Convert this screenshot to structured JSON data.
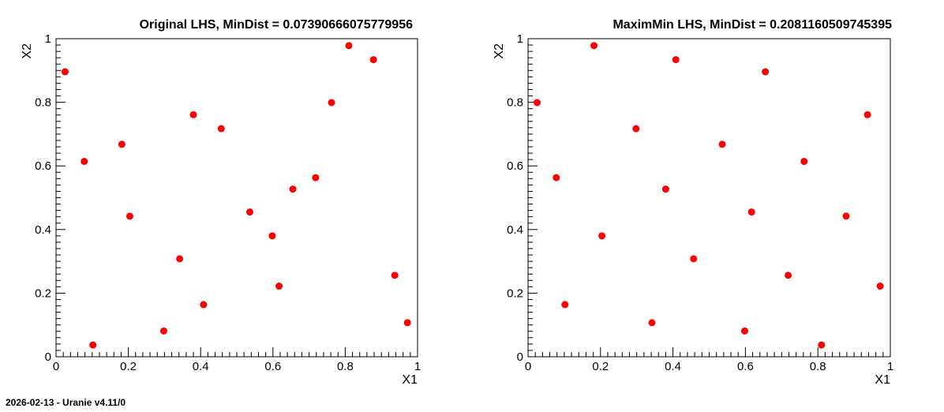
{
  "footer": "2026-02-13 - Uranie v4.11/0",
  "point_color": "#ff0000",
  "chart_data": [
    {
      "type": "scatter",
      "title": "Original LHS, MinDist = 0.07390666075779956",
      "xlabel": "X1",
      "ylabel": "X2",
      "xlim": [
        0,
        1
      ],
      "ylim": [
        0,
        1
      ],
      "xticks": [
        "0",
        "0.2",
        "0.4",
        "0.6",
        "0.8",
        "1"
      ],
      "yticks": [
        "0",
        "0.2",
        "0.4",
        "0.6",
        "0.8",
        "1"
      ],
      "points": [
        {
          "x": 0.025,
          "y": 0.896
        },
        {
          "x": 0.078,
          "y": 0.614
        },
        {
          "x": 0.102,
          "y": 0.037
        },
        {
          "x": 0.182,
          "y": 0.668
        },
        {
          "x": 0.204,
          "y": 0.442
        },
        {
          "x": 0.298,
          "y": 0.081
        },
        {
          "x": 0.342,
          "y": 0.308
        },
        {
          "x": 0.38,
          "y": 0.761
        },
        {
          "x": 0.408,
          "y": 0.164
        },
        {
          "x": 0.457,
          "y": 0.717
        },
        {
          "x": 0.536,
          "y": 0.455
        },
        {
          "x": 0.598,
          "y": 0.38
        },
        {
          "x": 0.617,
          "y": 0.222
        },
        {
          "x": 0.655,
          "y": 0.527
        },
        {
          "x": 0.718,
          "y": 0.563
        },
        {
          "x": 0.762,
          "y": 0.799
        },
        {
          "x": 0.81,
          "y": 0.978
        },
        {
          "x": 0.878,
          "y": 0.934
        },
        {
          "x": 0.937,
          "y": 0.256
        },
        {
          "x": 0.972,
          "y": 0.107
        }
      ]
    },
    {
      "type": "scatter",
      "title": "MaximMin LHS, MinDist = 0.2081160509745395",
      "xlabel": "X1",
      "ylabel": "X2",
      "xlim": [
        0,
        1
      ],
      "ylim": [
        0,
        1
      ],
      "xticks": [
        "0",
        "0.2",
        "0.4",
        "0.6",
        "0.8",
        "1"
      ],
      "yticks": [
        "0",
        "0.2",
        "0.4",
        "0.6",
        "0.8",
        "1"
      ],
      "points": [
        {
          "x": 0.025,
          "y": 0.799
        },
        {
          "x": 0.078,
          "y": 0.563
        },
        {
          "x": 0.102,
          "y": 0.164
        },
        {
          "x": 0.182,
          "y": 0.978
        },
        {
          "x": 0.204,
          "y": 0.38
        },
        {
          "x": 0.298,
          "y": 0.717
        },
        {
          "x": 0.342,
          "y": 0.107
        },
        {
          "x": 0.38,
          "y": 0.527
        },
        {
          "x": 0.408,
          "y": 0.934
        },
        {
          "x": 0.457,
          "y": 0.308
        },
        {
          "x": 0.536,
          "y": 0.668
        },
        {
          "x": 0.598,
          "y": 0.081
        },
        {
          "x": 0.617,
          "y": 0.455
        },
        {
          "x": 0.655,
          "y": 0.896
        },
        {
          "x": 0.718,
          "y": 0.256
        },
        {
          "x": 0.762,
          "y": 0.614
        },
        {
          "x": 0.81,
          "y": 0.037
        },
        {
          "x": 0.878,
          "y": 0.442
        },
        {
          "x": 0.937,
          "y": 0.761
        },
        {
          "x": 0.972,
          "y": 0.222
        }
      ]
    }
  ]
}
